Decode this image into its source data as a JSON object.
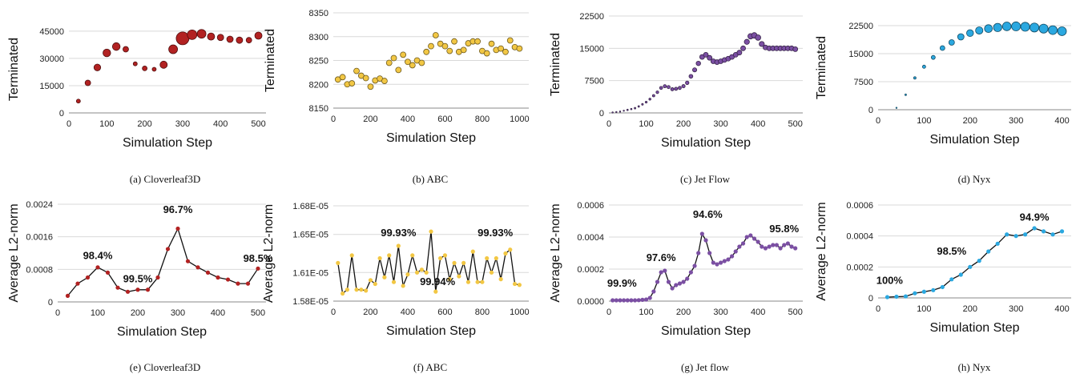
{
  "chart_data": [
    {
      "type": "scatter",
      "caption": "(a) Cloverleaf3D",
      "xlabel": "Simulation Step",
      "ylabel": "Terminated",
      "xlim": [
        0,
        520
      ],
      "ylim": [
        0,
        48000
      ],
      "xticks": [
        0,
        100,
        200,
        300,
        400,
        500
      ],
      "yticks": [
        0,
        15000,
        30000,
        45000
      ],
      "ytick_labels": [
        "0",
        "15000",
        "30000",
        "45000"
      ],
      "color": "#b22222",
      "x": [
        25,
        50,
        75,
        100,
        125,
        150,
        175,
        200,
        225,
        250,
        275,
        300,
        325,
        350,
        375,
        400,
        425,
        450,
        475,
        500
      ],
      "y": [
        6500,
        16500,
        25000,
        33000,
        36500,
        35000,
        27000,
        24500,
        24000,
        26500,
        35000,
        41000,
        43000,
        43500,
        42000,
        41500,
        40500,
        40000,
        40000,
        42500
      ],
      "sizes": [
        2.5,
        3.5,
        4.2,
        4.8,
        4.8,
        3.5,
        2.5,
        3,
        2.5,
        4.5,
        5.5,
        8,
        6,
        5.5,
        4.5,
        4,
        4,
        4,
        3.5,
        4.5
      ]
    },
    {
      "type": "scatter",
      "caption": "(b) ABC",
      "xlabel": "Simulation Step",
      "ylabel": "Terminated",
      "xlim": [
        0,
        1050
      ],
      "ylim": [
        8150,
        8350
      ],
      "xticks": [
        0,
        200,
        400,
        600,
        800,
        1000
      ],
      "yticks": [
        8150,
        8200,
        8250,
        8300,
        8350
      ],
      "ytick_labels": [
        "8150",
        "8200",
        "8250",
        "8300",
        "8350"
      ],
      "color": "#f2c744",
      "x": [
        25,
        50,
        75,
        100,
        125,
        150,
        175,
        200,
        225,
        250,
        275,
        300,
        325,
        350,
        375,
        400,
        425,
        450,
        475,
        500,
        525,
        550,
        575,
        600,
        625,
        650,
        675,
        700,
        725,
        750,
        775,
        800,
        825,
        850,
        875,
        900,
        925,
        950,
        975,
        1000
      ],
      "y": [
        8210,
        8215,
        8200,
        8202,
        8228,
        8218,
        8213,
        8195,
        8208,
        8212,
        8207,
        8245,
        8255,
        8230,
        8262,
        8247,
        8240,
        8250,
        8245,
        8268,
        8280,
        8303,
        8285,
        8280,
        8270,
        8290,
        8268,
        8272,
        8286,
        8290,
        8290,
        8270,
        8265,
        8285,
        8272,
        8275,
        8268,
        8292,
        8278,
        8275
      ],
      "sizes": [
        3.5,
        3.5,
        3.5,
        3.5,
        3.5,
        3.5,
        3.5,
        3.5,
        3.5,
        3.5,
        3.5,
        3.5,
        3.5,
        3.5,
        3.5,
        3.5,
        3.5,
        3.5,
        3.5,
        3.5,
        3.5,
        3.5,
        3.5,
        3.5,
        3.5,
        3.5,
        3.5,
        3.5,
        3.5,
        3.5,
        3.5,
        3.5,
        3.5,
        3.5,
        3.5,
        3.5,
        3.5,
        3.5,
        3.5,
        3.5
      ]
    },
    {
      "type": "scatter",
      "caption": "(c) Jet Flow",
      "xlabel": "Simulation Step",
      "ylabel": "Terminated",
      "xlim": [
        0,
        520
      ],
      "ylim": [
        0,
        22500
      ],
      "xticks": [
        0,
        100,
        200,
        300,
        400,
        500
      ],
      "yticks": [
        0,
        7500,
        15000,
        22500
      ],
      "ytick_labels": [
        "0",
        "7500",
        "15000",
        "22500"
      ],
      "color": "#7b4fa3",
      "x": [
        10,
        20,
        30,
        40,
        50,
        60,
        70,
        80,
        90,
        100,
        110,
        120,
        130,
        140,
        150,
        160,
        170,
        180,
        190,
        200,
        210,
        220,
        230,
        240,
        250,
        260,
        270,
        280,
        290,
        300,
        310,
        320,
        330,
        340,
        350,
        360,
        370,
        380,
        390,
        400,
        410,
        420,
        430,
        440,
        450,
        460,
        470,
        480,
        490,
        500
      ],
      "y": [
        100,
        200,
        300,
        500,
        700,
        900,
        1100,
        1500,
        2000,
        2500,
        3200,
        4000,
        4800,
        5800,
        6200,
        6000,
        5500,
        5600,
        5800,
        6200,
        7000,
        8500,
        10000,
        11500,
        13000,
        13500,
        12800,
        12000,
        11800,
        12000,
        12300,
        12600,
        13000,
        13500,
        14000,
        15000,
        16500,
        17800,
        18000,
        17500,
        16000,
        15200,
        15000,
        15000,
        15000,
        15000,
        15000,
        15000,
        15000,
        14800
      ],
      "sizes": [
        0.8,
        0.8,
        0.8,
        0.8,
        0.9,
        0.9,
        1,
        1,
        1.1,
        1.2,
        1.3,
        1.5,
        1.7,
        1.9,
        2,
        2,
        2,
        2,
        2,
        2.1,
        2.2,
        2.4,
        2.6,
        2.8,
        3,
        3,
        3,
        3,
        3,
        3,
        3,
        3,
        3,
        3,
        3,
        3,
        3.2,
        3.4,
        3.5,
        3.4,
        3.2,
        3,
        3,
        3,
        3,
        3,
        3,
        3,
        3,
        3
      ]
    },
    {
      "type": "scatter",
      "caption": "(d) Nyx",
      "xlabel": "Simulation Step",
      "ylabel": "Terminated",
      "xlim": [
        0,
        420
      ],
      "ylim": [
        0,
        22500
      ],
      "xticks": [
        0,
        100,
        200,
        300,
        400
      ],
      "yticks": [
        0,
        7500,
        15000,
        22500
      ],
      "ytick_labels": [
        "0",
        "7500",
        "15000",
        "22500"
      ],
      "color": "#2ba8e0",
      "x": [
        40,
        60,
        80,
        100,
        120,
        140,
        160,
        180,
        200,
        220,
        240,
        260,
        280,
        300,
        320,
        340,
        360,
        380,
        400
      ],
      "y": [
        500,
        4000,
        8500,
        11500,
        14000,
        16500,
        18000,
        19500,
        20500,
        21200,
        21700,
        22000,
        22300,
        22300,
        22200,
        22000,
        21700,
        21300,
        21000
      ],
      "sizes": [
        0.8,
        1,
        1.5,
        2,
        2.5,
        3,
        3.5,
        4,
        4.3,
        4.6,
        4.9,
        5.2,
        5.4,
        5.6,
        5.6,
        5.6,
        5.6,
        5.5,
        5.5
      ]
    },
    {
      "type": "line",
      "caption": "(e) Cloverleaf3D",
      "xlabel": "Simulation Step",
      "ylabel": "Average L2-norm",
      "xlim": [
        0,
        520
      ],
      "ylim": [
        0,
        0.0024
      ],
      "xticks": [
        0,
        100,
        200,
        300,
        400,
        500
      ],
      "yticks": [
        0,
        0.0008,
        0.0016,
        0.0024
      ],
      "ytick_labels": [
        "0",
        "0.0008",
        "0.0016",
        "0.0024"
      ],
      "color": "#b22222",
      "x": [
        25,
        50,
        75,
        100,
        125,
        150,
        175,
        200,
        225,
        250,
        275,
        300,
        325,
        350,
        375,
        400,
        425,
        450,
        475,
        500
      ],
      "y": [
        0.00015,
        0.00045,
        0.0006,
        0.00085,
        0.00072,
        0.00035,
        0.00025,
        0.0003,
        0.0003,
        0.0006,
        0.0013,
        0.0018,
        0.001,
        0.00085,
        0.00072,
        0.0006,
        0.00055,
        0.00045,
        0.00045,
        0.00082
      ],
      "annotations": [
        {
          "text": "98.4%",
          "x": 100,
          "y": 0.00105
        },
        {
          "text": "99.5%",
          "x": 200,
          "y": 0.00048
        },
        {
          "text": "96.7%",
          "x": 300,
          "y": 0.00218
        },
        {
          "text": "98.5%",
          "x": 500,
          "y": 0.00098
        }
      ]
    },
    {
      "type": "line",
      "caption": "(f) ABC",
      "xlabel": "Simulation Step",
      "ylabel": "Average L2-norm",
      "xlim": [
        0,
        1050
      ],
      "ylim": [
        1.58e-05,
        1.68e-05
      ],
      "xticks": [
        0,
        200,
        400,
        600,
        800,
        1000
      ],
      "yticks": [
        1.58e-05,
        1.61e-05,
        1.65e-05,
        1.68e-05
      ],
      "ytick_labels": [
        "1.58E-05",
        "1.61E-05",
        "1.65E-05",
        "1.68E-05"
      ],
      "color": "#f2c744",
      "x": [
        25,
        50,
        75,
        100,
        125,
        150,
        175,
        200,
        225,
        250,
        275,
        300,
        325,
        350,
        375,
        400,
        425,
        450,
        475,
        500,
        525,
        550,
        575,
        600,
        625,
        650,
        675,
        700,
        725,
        750,
        775,
        800,
        825,
        850,
        875,
        900,
        925,
        950,
        975,
        1000
      ],
      "y": [
        1.62e-05,
        1.588e-05,
        1.592e-05,
        1.628e-05,
        1.592e-05,
        1.592e-05,
        1.591e-05,
        1.602e-05,
        1.598e-05,
        1.625e-05,
        1.605e-05,
        1.628e-05,
        1.6e-05,
        1.638e-05,
        1.596e-05,
        1.608e-05,
        1.628e-05,
        1.61e-05,
        1.613e-05,
        1.61e-05,
        1.653e-05,
        1.59e-05,
        1.625e-05,
        1.628e-05,
        1.603e-05,
        1.62e-05,
        1.606e-05,
        1.62e-05,
        1.6e-05,
        1.632e-05,
        1.6e-05,
        1.6e-05,
        1.625e-05,
        1.61e-05,
        1.625e-05,
        1.603e-05,
        1.63e-05,
        1.634e-05,
        1.598e-05,
        1.597e-05
      ],
      "annotations": [
        {
          "text": "99.93%",
          "x": 350,
          "y": 1.648e-05
        },
        {
          "text": "99.93%",
          "x": 870,
          "y": 1.648e-05
        },
        {
          "text": "99.94%",
          "x": 560,
          "y": 1.597e-05
        }
      ]
    },
    {
      "type": "line",
      "caption": "(g) Jet flow",
      "xlabel": "Simulation Step",
      "ylabel": "Average L2-norm",
      "xlim": [
        0,
        520
      ],
      "ylim": [
        0,
        0.0006
      ],
      "xticks": [
        0,
        100,
        200,
        300,
        400,
        500
      ],
      "yticks": [
        0,
        0.0002,
        0.0004,
        0.0006
      ],
      "ytick_labels": [
        "0.0000",
        "0.0002",
        "0.0004",
        "0.0006"
      ],
      "color": "#7b4fa3",
      "x": [
        10,
        20,
        30,
        40,
        50,
        60,
        70,
        80,
        90,
        100,
        110,
        120,
        130,
        140,
        150,
        160,
        170,
        180,
        190,
        200,
        210,
        220,
        230,
        240,
        250,
        260,
        270,
        280,
        290,
        300,
        310,
        320,
        330,
        340,
        350,
        360,
        370,
        380,
        390,
        400,
        410,
        420,
        430,
        440,
        450,
        460,
        470,
        480,
        490,
        500
      ],
      "y": [
        5e-06,
        5e-06,
        5e-06,
        5e-06,
        5e-06,
        5e-06,
        5e-06,
        6e-06,
        8e-06,
        1e-05,
        2e-05,
        6e-05,
        0.00012,
        0.00018,
        0.00019,
        0.00012,
        8e-05,
        0.0001,
        0.00011,
        0.00012,
        0.00014,
        0.00018,
        0.00022,
        0.0003,
        0.00042,
        0.00038,
        0.0003,
        0.00024,
        0.00023,
        0.00024,
        0.00025,
        0.00026,
        0.00028,
        0.00031,
        0.00034,
        0.00036,
        0.0004,
        0.00041,
        0.00039,
        0.00037,
        0.00034,
        0.00033,
        0.00034,
        0.00035,
        0.00035,
        0.00033,
        0.00035,
        0.00036,
        0.00034,
        0.00033
      ],
      "annotations": [
        {
          "text": "99.9%",
          "x": 35,
          "y": 9e-05
        },
        {
          "text": "97.6%",
          "x": 140,
          "y": 0.00025
        },
        {
          "text": "94.6%",
          "x": 265,
          "y": 0.00052
        },
        {
          "text": "95.8%",
          "x": 470,
          "y": 0.00043
        }
      ]
    },
    {
      "type": "line",
      "caption": "(h) Nyx",
      "xlabel": "Simulation Step",
      "ylabel": "Average L2-norm",
      "xlim": [
        0,
        420
      ],
      "ylim": [
        0,
        0.0006
      ],
      "xticks": [
        0,
        100,
        200,
        300,
        400
      ],
      "yticks": [
        0,
        0.0002,
        0.0004,
        0.0006
      ],
      "ytick_labels": [
        "0",
        "0.0002",
        "0.0004",
        "0.0006"
      ],
      "color": "#2ba8e0",
      "x": [
        20,
        40,
        60,
        80,
        100,
        120,
        140,
        160,
        180,
        200,
        220,
        240,
        260,
        280,
        300,
        320,
        340,
        360,
        380,
        400
      ],
      "y": [
        5e-06,
        8e-06,
        1e-05,
        3e-05,
        4e-05,
        5e-05,
        7e-05,
        0.00012,
        0.00015,
        0.0002,
        0.00024,
        0.0003,
        0.00035,
        0.00041,
        0.0004,
        0.00041,
        0.00045,
        0.00043,
        0.00041,
        0.00043
      ],
      "annotations": [
        {
          "text": "100%",
          "x": 25,
          "y": 9e-05
        },
        {
          "text": "98.5%",
          "x": 160,
          "y": 0.00028
        },
        {
          "text": "94.9%",
          "x": 340,
          "y": 0.0005
        }
      ]
    }
  ]
}
